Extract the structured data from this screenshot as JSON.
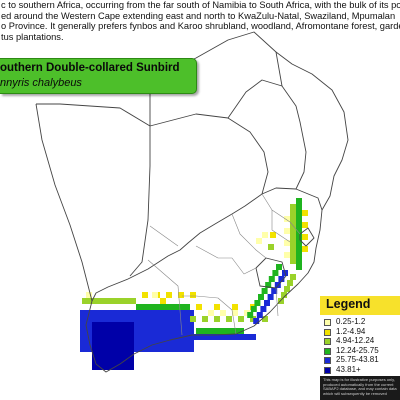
{
  "description": {
    "lines": [
      "c to southern Africa, occurring from the far south of Namibia to South Africa, with the bulk of its po",
      "ed around the Western Cape extending east and north to KwaZulu-Natal, Swaziland, Mpumalan",
      "o Province. It generally prefers fynbos and Karoo shrubland, woodland, Afromontane forest, garde",
      "tus plantations."
    ]
  },
  "species": {
    "common_name": "outhern Double-collared Sunbird",
    "scientific_name": "nnyris chalybeus"
  },
  "legend": {
    "title": "Legend",
    "items": [
      {
        "label": "0.25-1.2",
        "color": "#ffffaa"
      },
      {
        "label": "1.2-4.94",
        "color": "#f2e200"
      },
      {
        "label": "4.94-12.24",
        "color": "#9ad22a"
      },
      {
        "label": "12.24-25.75",
        "color": "#1fb41f"
      },
      {
        "label": "25.75-43.81",
        "color": "#1a2ad6"
      },
      {
        "label": "43.81+",
        "color": "#0000a8"
      }
    ],
    "disclaimer": "This map is for illustrative purposes only, produced automatically from the current SABAP2 database, and may contain data which will subsequently be removed"
  }
}
